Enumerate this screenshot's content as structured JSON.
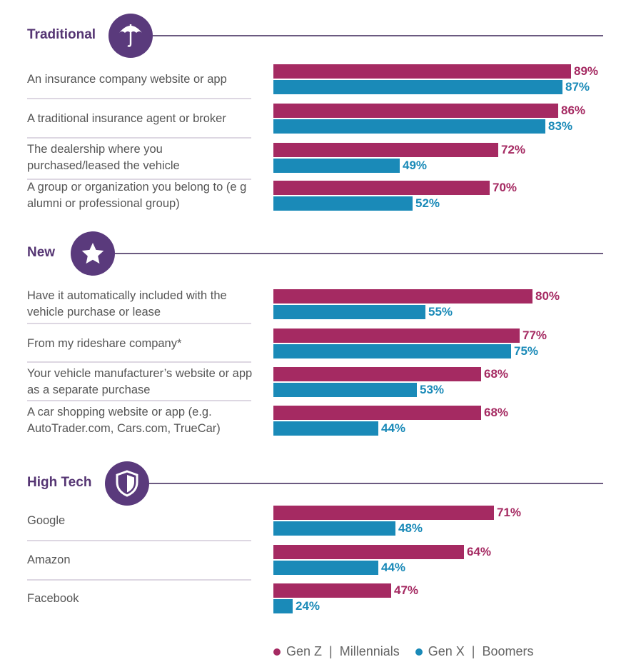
{
  "chart_data": {
    "type": "bar",
    "orientation": "horizontal",
    "legend_position": "bottom",
    "colors": {
      "gen_z_millennials": "#a52a62",
      "gen_x_boomers": "#1a8ab8",
      "section_accent": "#5a3a7c"
    },
    "legend": [
      {
        "label": "Gen Z  |  Millennials",
        "color": "#a52a62"
      },
      {
        "label": "Gen X  |  Boomers",
        "color": "#1a8ab8"
      }
    ],
    "sections": [
      {
        "title": "Traditional",
        "icon": "umbrella-icon",
        "rows": [
          {
            "label": "An insurance company website or app",
            "values": [
              89,
              87
            ]
          },
          {
            "label": "A traditional insurance agent or broker",
            "values": [
              86,
              83
            ]
          },
          {
            "label": "The dealership where you purchased/leased the vehicle",
            "values": [
              72,
              49
            ]
          },
          {
            "label": "A group or organization you belong to (e g  alumni or professional group)",
            "values": [
              70,
              52
            ]
          }
        ]
      },
      {
        "title": "New",
        "icon": "star-icon",
        "rows": [
          {
            "label": "Have it automatically included with the vehicle purchase or lease",
            "values": [
              80,
              55
            ]
          },
          {
            "label": "From my rideshare company*",
            "values": [
              77,
              75
            ]
          },
          {
            "label": "Your vehicle manufacturer’s website or app as a separate purchase",
            "values": [
              68,
              53
            ]
          },
          {
            "label": "A car shopping website or app (e.g. AutoTrader.com, Cars.com, TrueCar)",
            "values": [
              68,
              44
            ]
          }
        ]
      },
      {
        "title": "High Tech",
        "icon": "shield-icon",
        "rows": [
          {
            "label": "Google",
            "values": [
              71,
              48
            ]
          },
          {
            "label": "Amazon",
            "values": [
              64,
              44
            ]
          },
          {
            "label": "Facebook",
            "values": [
              47,
              24
            ]
          }
        ]
      }
    ]
  }
}
